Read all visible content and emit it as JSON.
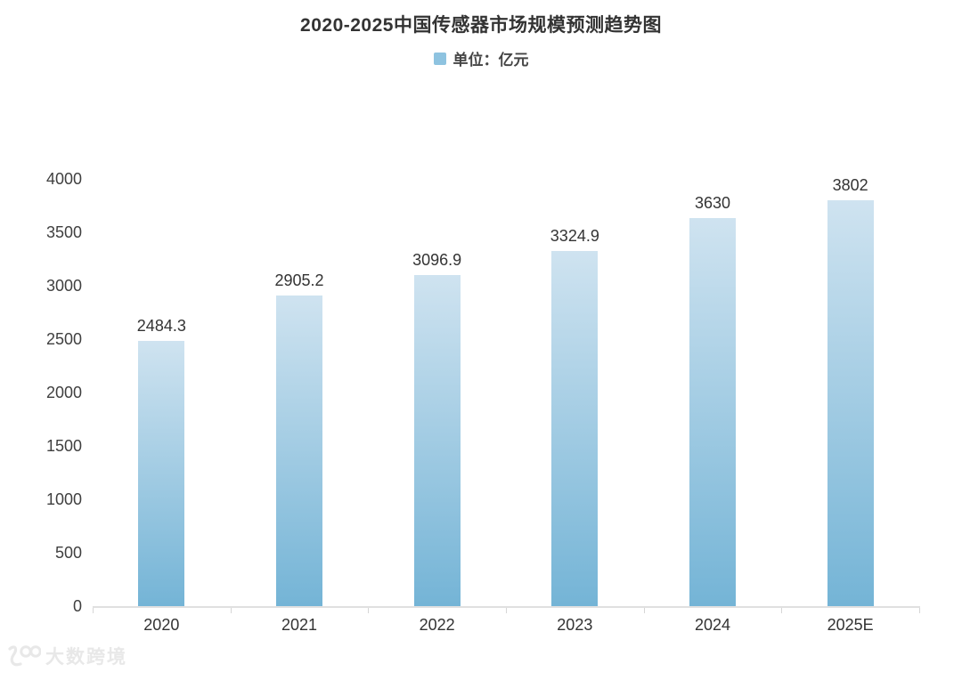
{
  "header": {
    "title": "2020-2025中国传感器市场规模预测趋势图"
  },
  "legend": {
    "label": "单位：亿元",
    "swatch_color": "#8ec3e0"
  },
  "chart_data": {
    "type": "bar",
    "title": "2020-2025中国传感器市场规模预测趋势图",
    "legend_entries": [
      "单位：亿元"
    ],
    "legend_position": "top-center",
    "categories": [
      "2020",
      "2021",
      "2022",
      "2023",
      "2024",
      "2025E"
    ],
    "values": [
      2484.3,
      2905.2,
      3096.9,
      3324.9,
      3630,
      3802
    ],
    "value_labels": [
      "2484.3",
      "2905.2",
      "3096.9",
      "3324.9",
      "3630",
      "3802"
    ],
    "xlabel": "",
    "ylabel": "",
    "ylim": [
      0,
      4000
    ],
    "yticks": [
      0,
      500,
      1000,
      1500,
      2000,
      2500,
      3000,
      3500,
      4000
    ],
    "grid": false,
    "bar_gradient_top": "#cfe3f0",
    "bar_gradient_bottom": "#74b4d6",
    "axis_color": "#e0e0e0",
    "text_color": "#333333"
  },
  "watermark": {
    "logo": "100-swoosh-logo",
    "text": "大数跨境",
    "color": "#e8e8e8"
  }
}
